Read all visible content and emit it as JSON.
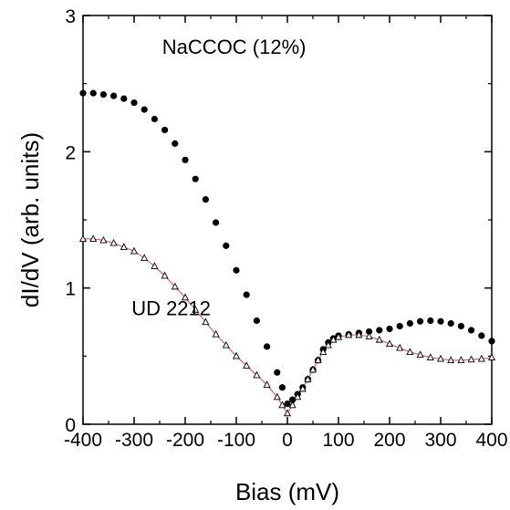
{
  "chart_data": {
    "type": "scatter",
    "title": "",
    "xlabel": "Bias (mV)",
    "ylabel": "dI/dV (arb. units)",
    "xlim": [
      -400,
      400
    ],
    "ylim": [
      0,
      3
    ],
    "xticks": [
      -400,
      -300,
      -200,
      -100,
      0,
      100,
      200,
      300,
      400
    ],
    "xtick_labels": [
      "-400",
      "-300",
      "-200",
      "-100",
      "0",
      "100",
      "200",
      "300",
      "400"
    ],
    "yticks": [
      0,
      1,
      2,
      3
    ],
    "ytick_labels": [
      "0",
      "1",
      "2",
      "3"
    ],
    "grid": false,
    "legend": "none",
    "annotations": [
      {
        "text": "NaCCOC (12%)",
        "x": -245,
        "y": 2.72
      },
      {
        "text": "UD 2212",
        "x": -305,
        "y": 0.8
      }
    ],
    "series": [
      {
        "marker": "filled-circle",
        "color": "#000000",
        "x": [
          -400,
          -380,
          -360,
          -340,
          -320,
          -300,
          -280,
          -260,
          -240,
          -220,
          -200,
          -180,
          -160,
          -140,
          -120,
          -100,
          -80,
          -60,
          -40,
          -20,
          -10,
          0,
          10,
          20,
          30,
          40,
          50,
          60,
          70,
          80,
          90,
          100,
          120,
          140,
          160,
          180,
          200,
          220,
          240,
          260,
          280,
          300,
          320,
          340,
          360,
          380,
          400
        ],
        "y": [
          2.43,
          2.43,
          2.42,
          2.41,
          2.39,
          2.36,
          2.31,
          2.24,
          2.16,
          2.06,
          1.94,
          1.8,
          1.65,
          1.48,
          1.31,
          1.13,
          0.95,
          0.76,
          0.57,
          0.38,
          0.27,
          0.15,
          0.18,
          0.22,
          0.27,
          0.33,
          0.4,
          0.47,
          0.55,
          0.6,
          0.63,
          0.65,
          0.66,
          0.67,
          0.68,
          0.69,
          0.7,
          0.72,
          0.74,
          0.755,
          0.76,
          0.755,
          0.74,
          0.72,
          0.69,
          0.65,
          0.61
        ]
      },
      {
        "marker": "open-triangle",
        "color": "#000000",
        "fit_color": "#e06060",
        "x": [
          -400,
          -380,
          -360,
          -340,
          -320,
          -300,
          -280,
          -260,
          -240,
          -220,
          -200,
          -180,
          -160,
          -140,
          -120,
          -100,
          -80,
          -60,
          -40,
          -20,
          -10,
          0,
          10,
          20,
          30,
          40,
          50,
          60,
          70,
          80,
          90,
          100,
          120,
          140,
          160,
          180,
          200,
          220,
          240,
          260,
          280,
          300,
          320,
          340,
          360,
          380,
          400
        ],
        "y": [
          1.36,
          1.36,
          1.35,
          1.33,
          1.3,
          1.27,
          1.22,
          1.16,
          1.09,
          1.01,
          0.93,
          0.84,
          0.75,
          0.66,
          0.58,
          0.5,
          0.43,
          0.36,
          0.29,
          0.2,
          0.14,
          0.08,
          0.14,
          0.2,
          0.26,
          0.33,
          0.4,
          0.47,
          0.53,
          0.58,
          0.62,
          0.64,
          0.655,
          0.655,
          0.645,
          0.62,
          0.59,
          0.56,
          0.53,
          0.51,
          0.49,
          0.48,
          0.47,
          0.47,
          0.475,
          0.48,
          0.49
        ]
      }
    ]
  }
}
